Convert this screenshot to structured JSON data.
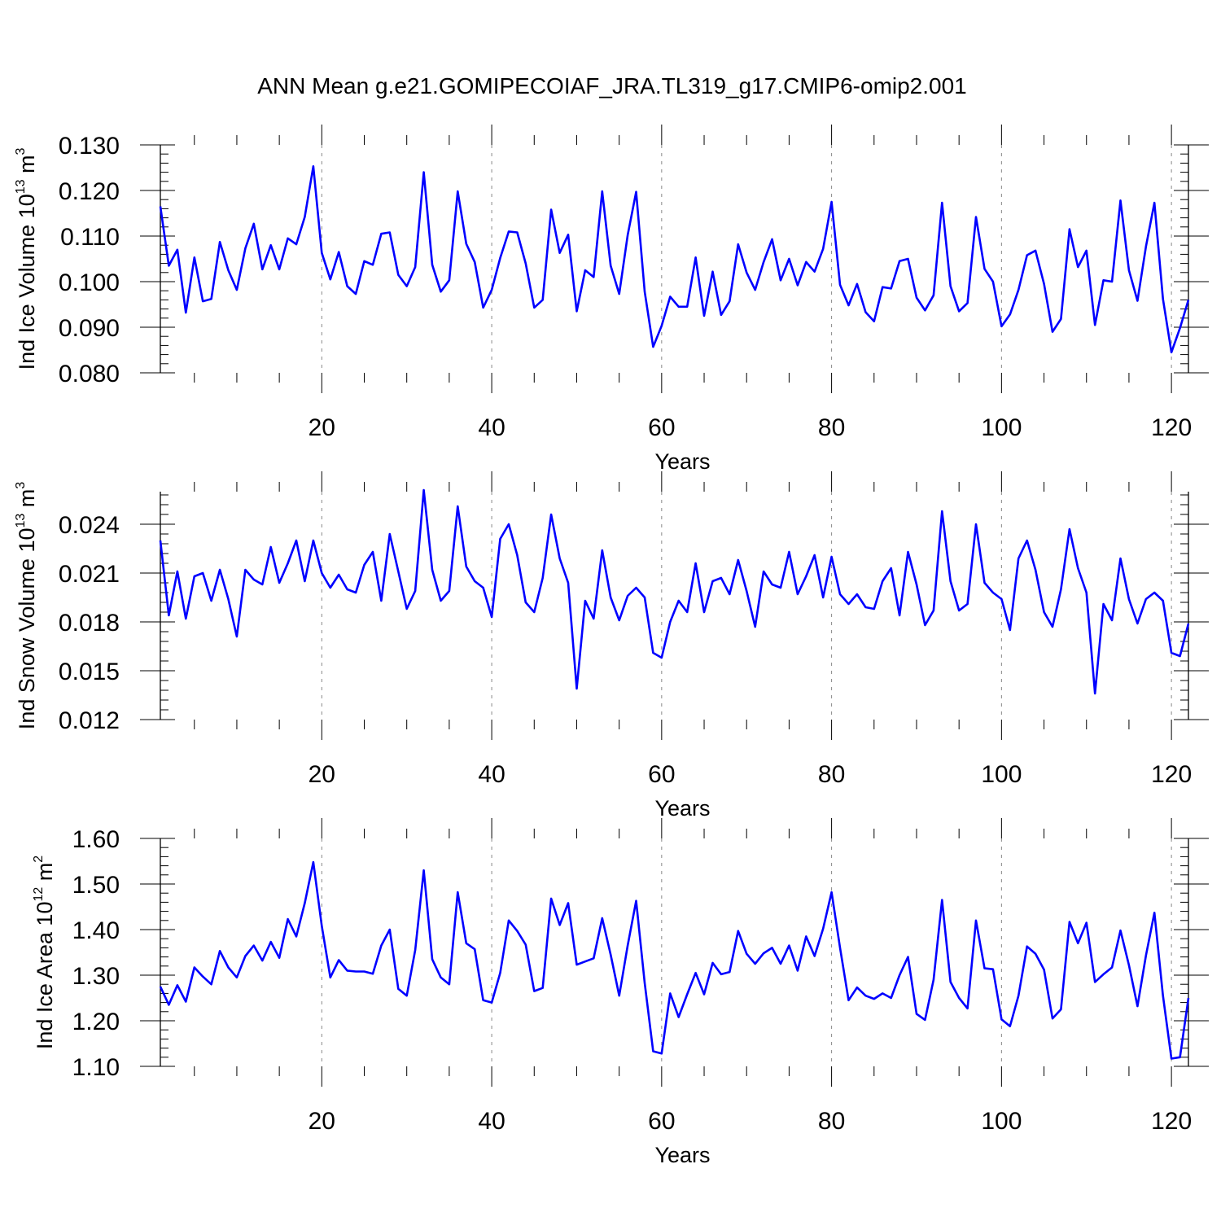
{
  "figure_title": "ANN Mean g.e21.GOMIPECOIAF_JRA.TL319_g17.CMIP6-omip2.001",
  "colors": {
    "line": "#0000ff",
    "axis": "#000000",
    "grid": "#888888"
  },
  "chart_data": [
    {
      "type": "line",
      "title": "ANN Mean g.e21.GOMIPECOIAF_JRA.TL319_g17.CMIP6-omip2.001",
      "xlabel": "Years",
      "ylabel_main": "Ind Ice Volume 10",
      "ylabel_exp": "13",
      "ylabel_unit": " m",
      "ylabel_unit_exp": "3",
      "xlim": [
        1,
        122
      ],
      "ylim": [
        0.08,
        0.13
      ],
      "x_ticks": [
        20,
        40,
        60,
        80,
        100,
        120
      ],
      "x_tick_labels": [
        "20",
        "40",
        "60",
        "80",
        "100",
        "120"
      ],
      "y_ticks": [
        0.08,
        0.09,
        0.1,
        0.11,
        0.12,
        0.13
      ],
      "y_tick_labels": [
        "0.080",
        "0.090",
        "0.100",
        "0.110",
        "0.120",
        "0.130"
      ],
      "grid": "vertical dashed at x ticks",
      "series": [
        {
          "name": "Ind Ice Volume",
          "values": [
            0.1165,
            0.1035,
            0.107,
            0.0932,
            0.1053,
            0.0957,
            0.0962,
            0.1087,
            0.1025,
            0.0982,
            0.1073,
            0.1127,
            0.1027,
            0.108,
            0.1027,
            0.1095,
            0.1082,
            0.1142,
            0.1253,
            0.1063,
            0.1005,
            0.1065,
            0.099,
            0.0973,
            0.1045,
            0.1037,
            0.1105,
            0.1108,
            0.1015,
            0.099,
            0.1032,
            0.124,
            0.1037,
            0.0978,
            0.1003,
            0.1198,
            0.1083,
            0.1043,
            0.0943,
            0.0982,
            0.1052,
            0.111,
            0.1108,
            0.104,
            0.0943,
            0.096,
            0.1158,
            0.1063,
            0.1103,
            0.0935,
            0.1025,
            0.101,
            0.1198,
            0.1035,
            0.0973,
            0.1102,
            0.1197,
            0.0978,
            0.0857,
            0.0903,
            0.0967,
            0.0945,
            0.0945,
            0.1053,
            0.0925,
            0.1022,
            0.0927,
            0.0957,
            0.1082,
            0.102,
            0.0982,
            0.1043,
            0.1093,
            0.1003,
            0.105,
            0.0992,
            0.1043,
            0.1022,
            0.1072,
            0.1175,
            0.0993,
            0.0948,
            0.0995,
            0.0933,
            0.0913,
            0.0988,
            0.0985,
            0.1045,
            0.105,
            0.0965,
            0.0937,
            0.097,
            0.1173,
            0.099,
            0.0935,
            0.0953,
            0.1142,
            0.1028,
            0.1,
            0.0902,
            0.0928,
            0.0982,
            0.1058,
            0.1068,
            0.0995,
            0.089,
            0.0918,
            0.1115,
            0.1032,
            0.1068,
            0.0905,
            0.1003,
            0.1,
            0.1178,
            0.1025,
            0.0958,
            0.1077,
            0.1173,
            0.0962,
            0.0845,
            0.0898,
            0.096
          ]
        }
      ]
    },
    {
      "type": "line",
      "xlabel": "Years",
      "ylabel_main": "Ind Snow Volume 10",
      "ylabel_exp": "13",
      "ylabel_unit": " m",
      "ylabel_unit_exp": "3",
      "xlim": [
        1,
        122
      ],
      "ylim": [
        0.012,
        0.026
      ],
      "x_ticks": [
        20,
        40,
        60,
        80,
        100,
        120
      ],
      "x_tick_labels": [
        "20",
        "40",
        "60",
        "80",
        "100",
        "120"
      ],
      "y_ticks": [
        0.012,
        0.015,
        0.018,
        0.021,
        0.024
      ],
      "y_tick_labels": [
        "0.012",
        "0.015",
        "0.018",
        "0.021",
        "0.024"
      ],
      "grid": "vertical dashed at x ticks",
      "series": [
        {
          "name": "Ind Snow Volume",
          "values": [
            0.023,
            0.0184,
            0.0211,
            0.0182,
            0.0208,
            0.021,
            0.0193,
            0.0212,
            0.0194,
            0.0171,
            0.0212,
            0.0206,
            0.0203,
            0.0226,
            0.0204,
            0.0216,
            0.023,
            0.0205,
            0.023,
            0.021,
            0.0201,
            0.0209,
            0.02,
            0.0198,
            0.0215,
            0.0223,
            0.0193,
            0.0234,
            0.0211,
            0.0188,
            0.0199,
            0.0261,
            0.0212,
            0.0193,
            0.0199,
            0.0251,
            0.0214,
            0.0205,
            0.0201,
            0.0183,
            0.0231,
            0.024,
            0.0221,
            0.0192,
            0.0186,
            0.0207,
            0.0246,
            0.0219,
            0.0204,
            0.0139,
            0.0193,
            0.0182,
            0.0224,
            0.0195,
            0.0181,
            0.0196,
            0.0201,
            0.0195,
            0.0161,
            0.0158,
            0.018,
            0.0193,
            0.0186,
            0.0216,
            0.0186,
            0.0205,
            0.0207,
            0.0197,
            0.0218,
            0.0199,
            0.0177,
            0.0211,
            0.0203,
            0.0201,
            0.0223,
            0.0197,
            0.0208,
            0.0221,
            0.0195,
            0.022,
            0.0197,
            0.0191,
            0.0197,
            0.0189,
            0.0188,
            0.0205,
            0.0213,
            0.0184,
            0.0223,
            0.0203,
            0.0178,
            0.0187,
            0.0248,
            0.0205,
            0.0187,
            0.0191,
            0.024,
            0.0204,
            0.0198,
            0.0194,
            0.0175,
            0.0219,
            0.023,
            0.0212,
            0.0186,
            0.0177,
            0.02,
            0.0237,
            0.0213,
            0.0198,
            0.0136,
            0.0191,
            0.0181,
            0.0219,
            0.0194,
            0.0179,
            0.0194,
            0.0198,
            0.0193,
            0.0161,
            0.0159,
            0.0179
          ]
        }
      ]
    },
    {
      "type": "line",
      "xlabel": "Years",
      "ylabel_main": "Ind Ice Area 10",
      "ylabel_exp": "12",
      "ylabel_unit": " m",
      "ylabel_unit_exp": "2",
      "xlim": [
        1,
        122
      ],
      "ylim": [
        1.1,
        1.6
      ],
      "x_ticks": [
        20,
        40,
        60,
        80,
        100,
        120
      ],
      "x_tick_labels": [
        "20",
        "40",
        "60",
        "80",
        "100",
        "120"
      ],
      "y_ticks": [
        1.1,
        1.2,
        1.3,
        1.4,
        1.5,
        1.6
      ],
      "y_tick_labels": [
        "1.10",
        "1.20",
        "1.30",
        "1.40",
        "1.50",
        "1.60"
      ],
      "grid": "vertical dashed at x ticks",
      "series": [
        {
          "name": "Ind Ice Area",
          "values": [
            1.275,
            1.235,
            1.278,
            1.242,
            1.317,
            1.297,
            1.28,
            1.353,
            1.317,
            1.295,
            1.342,
            1.365,
            1.332,
            1.373,
            1.338,
            1.423,
            1.385,
            1.458,
            1.548,
            1.408,
            1.295,
            1.333,
            1.31,
            1.308,
            1.308,
            1.303,
            1.365,
            1.4,
            1.27,
            1.255,
            1.355,
            1.53,
            1.335,
            1.295,
            1.28,
            1.482,
            1.37,
            1.357,
            1.245,
            1.24,
            1.305,
            1.42,
            1.397,
            1.367,
            1.265,
            1.272,
            1.468,
            1.41,
            1.458,
            1.323,
            1.33,
            1.337,
            1.425,
            1.345,
            1.255,
            1.365,
            1.463,
            1.283,
            1.133,
            1.128,
            1.26,
            1.208,
            1.258,
            1.305,
            1.258,
            1.327,
            1.302,
            1.307,
            1.397,
            1.347,
            1.325,
            1.348,
            1.36,
            1.325,
            1.365,
            1.31,
            1.385,
            1.342,
            1.402,
            1.482,
            1.36,
            1.245,
            1.273,
            1.255,
            1.248,
            1.26,
            1.25,
            1.3,
            1.34,
            1.215,
            1.202,
            1.29,
            1.465,
            1.285,
            1.25,
            1.227,
            1.42,
            1.315,
            1.313,
            1.203,
            1.188,
            1.255,
            1.363,
            1.347,
            1.312,
            1.205,
            1.225,
            1.417,
            1.37,
            1.415,
            1.285,
            1.302,
            1.317,
            1.398,
            1.322,
            1.232,
            1.343,
            1.437,
            1.255,
            1.117,
            1.12,
            1.25
          ]
        }
      ]
    }
  ]
}
